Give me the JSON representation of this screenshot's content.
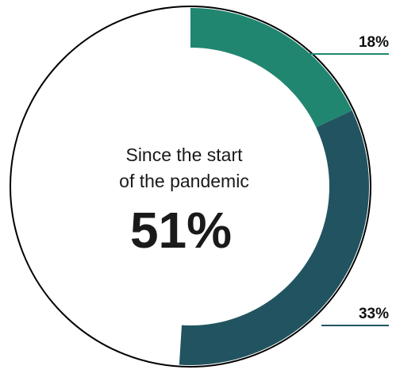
{
  "chart_data": {
    "type": "pie",
    "style": "donut",
    "center_caption_line1": "Since the start",
    "center_caption_line2": "of the pandemic",
    "center_value": "51%",
    "slices": [
      {
        "label": "18%",
        "value": 18,
        "color": "#218670"
      },
      {
        "label": "33%",
        "value": 33,
        "color": "#215460"
      }
    ],
    "remainder_outline_color": "#000000"
  }
}
